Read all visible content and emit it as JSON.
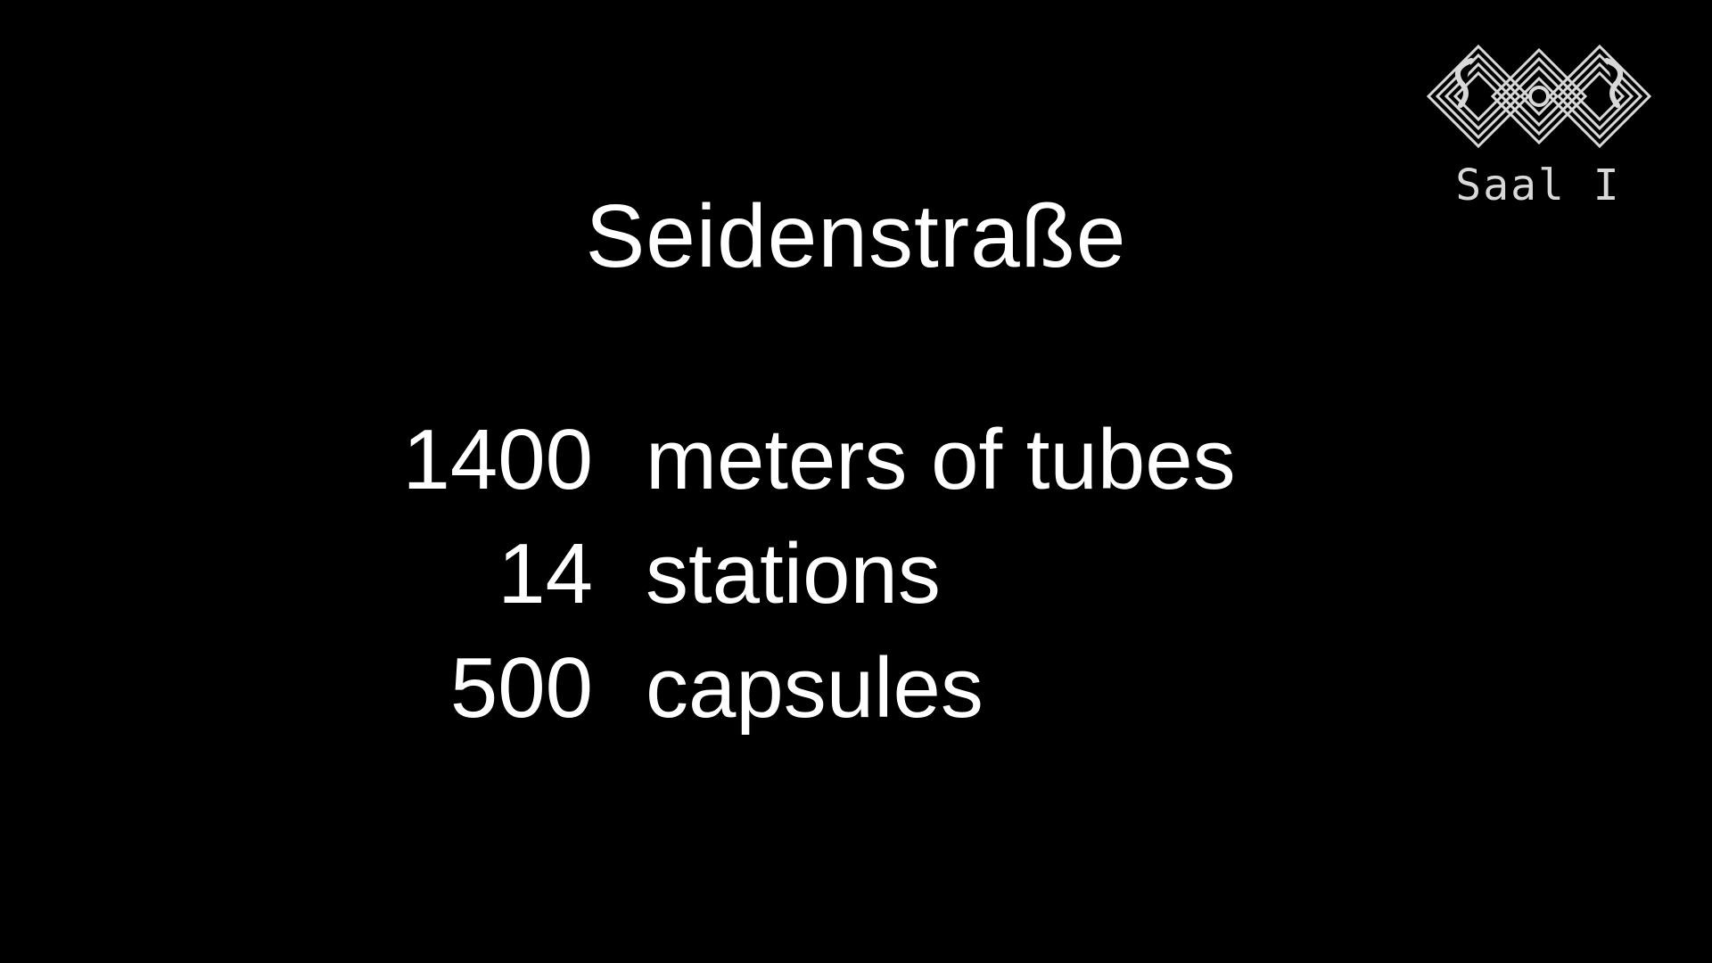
{
  "slide": {
    "title": "Seidenstraße",
    "stats": [
      {
        "number": "1400",
        "label": "meters of tubes"
      },
      {
        "number": "14",
        "label": "stations"
      },
      {
        "number": "500",
        "label": "capsules"
      }
    ]
  },
  "overlay": {
    "logo_icon": "congress-logo-icon",
    "room_label": "Saal I"
  },
  "colors": {
    "background": "#000000",
    "text": "#ffffff",
    "logo": "#d8d8d8"
  }
}
